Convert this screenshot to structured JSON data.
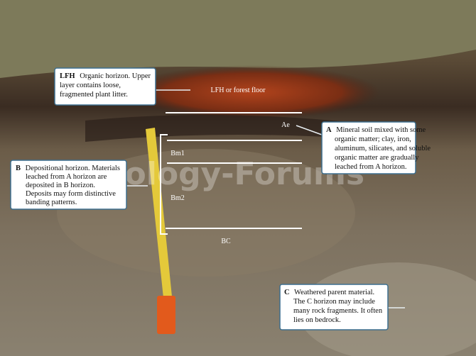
{
  "callouts": [
    {
      "label": "LFH",
      "lines": [
        "Organic horizon. Upper",
        "layer contains loose,",
        "fragmented plant litter."
      ]
    },
    {
      "label": "A",
      "lines": [
        "Mineral soil mixed with some",
        "organic matter; clay, iron,",
        "aluminum, silicates, and soluble",
        "organic matter are gradually",
        "leached from A horizon."
      ]
    },
    {
      "label": "B",
      "lines": [
        "Depositional horizon. Materials",
        "leached from A horizon are",
        "deposited in B horizon.",
        "Deposits may form distinctive",
        "banding patterns."
      ]
    },
    {
      "label": "C",
      "lines": [
        "Weathered parent material.",
        "The C horizon may include",
        "many rock fragments. It often",
        "lies on bedrock."
      ]
    }
  ],
  "horizons": [
    "LFH or forest floor",
    "Ae",
    "Bm1",
    "Bm2",
    "BC"
  ],
  "watermark": "Biology-Forums"
}
